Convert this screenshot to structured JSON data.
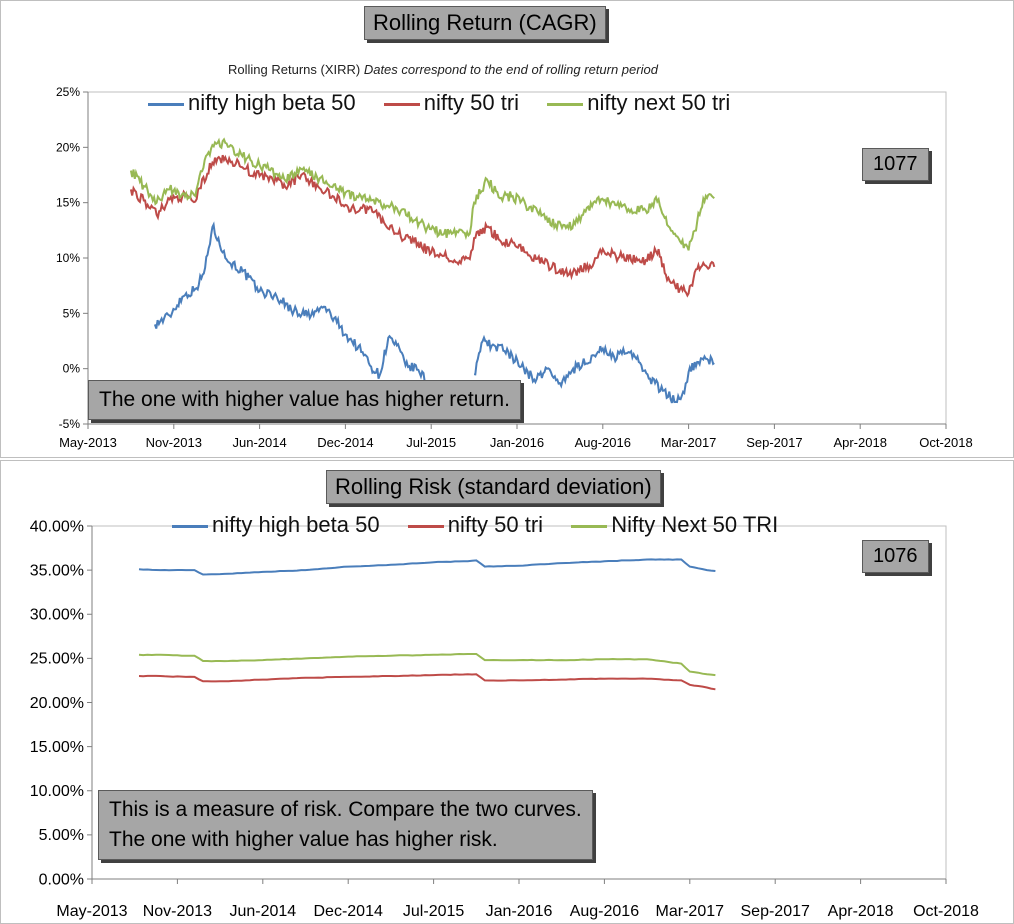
{
  "chart_data": [
    {
      "type": "line",
      "title": "Rolling Return (CAGR)",
      "subtitle": "Rolling Returns (XIRR)",
      "subtitle_note": "Dates correspond to the end of rolling return period",
      "tag": "1077",
      "annotation": "The one with higher value has higher return.",
      "x_tick_labels": [
        "May-2013",
        "Nov-2013",
        "Jun-2014",
        "Dec-2014",
        "Jul-2015",
        "Jan-2016",
        "Aug-2016",
        "Mar-2017",
        "Sep-2017",
        "Apr-2018",
        "Oct-2018"
      ],
      "y_tick_labels": [
        "-5%",
        "0%",
        "5%",
        "10%",
        "15%",
        "20%",
        "25%"
      ],
      "ylim": [
        -5,
        25
      ],
      "legend_position": "top",
      "grid": false,
      "series": [
        {
          "name": "nifty high beta 50",
          "color": "#4a7ebb",
          "points": [
            [
              0.78,
              4.0
            ],
            [
              0.95,
              4.8
            ],
            [
              1.1,
              6.5
            ],
            [
              1.25,
              7.2
            ],
            [
              1.35,
              8.6
            ],
            [
              1.45,
              12.8
            ],
            [
              1.52,
              11.8
            ],
            [
              1.6,
              10.0
            ],
            [
              1.8,
              8.8
            ],
            [
              2.0,
              7.0
            ],
            [
              2.2,
              6.5
            ],
            [
              2.4,
              5.2
            ],
            [
              2.6,
              4.8
            ],
            [
              2.75,
              5.6
            ],
            [
              2.9,
              4.2
            ],
            [
              3.0,
              3.1
            ],
            [
              3.2,
              1.5
            ],
            [
              3.3,
              0.2
            ],
            [
              3.4,
              -0.6
            ],
            [
              3.5,
              2.8
            ],
            [
              3.6,
              2.1
            ],
            [
              3.7,
              0.3
            ],
            [
              3.85,
              -0.1
            ],
            [
              4.0,
              -1.8
            ],
            [
              4.1,
              -2.8
            ]
          ],
          "points2": [
            [
              4.5,
              -0.5
            ],
            [
              4.6,
              2.5
            ],
            [
              4.75,
              2.0
            ],
            [
              4.9,
              1.5
            ],
            [
              5.05,
              0.2
            ],
            [
              5.2,
              -1.0
            ],
            [
              5.35,
              0.0
            ],
            [
              5.5,
              -1.3
            ],
            [
              5.7,
              0.2
            ],
            [
              5.9,
              1.2
            ],
            [
              6.0,
              1.8
            ],
            [
              6.1,
              1.0
            ],
            [
              6.3,
              1.5
            ],
            [
              6.45,
              0.3
            ],
            [
              6.55,
              -0.9
            ],
            [
              6.7,
              -2.0
            ],
            [
              6.85,
              -3.0
            ],
            [
              6.95,
              -2.2
            ],
            [
              7.0,
              -0.3
            ],
            [
              7.1,
              0.6
            ],
            [
              7.2,
              0.9
            ],
            [
              7.3,
              0.5
            ]
          ]
        },
        {
          "name": "nifty 50 tri",
          "color": "#be4b48",
          "points": [
            [
              0.5,
              16.2
            ],
            [
              0.65,
              15.2
            ],
            [
              0.8,
              13.9
            ],
            [
              0.95,
              15.3
            ],
            [
              1.1,
              15.6
            ],
            [
              1.25,
              15.1
            ],
            [
              1.3,
              16.3
            ],
            [
              1.45,
              18.6
            ],
            [
              1.6,
              19.1
            ],
            [
              1.8,
              18.2
            ],
            [
              2.0,
              17.4
            ],
            [
              2.2,
              17.0
            ],
            [
              2.3,
              16.4
            ],
            [
              2.5,
              17.6
            ],
            [
              2.7,
              16.3
            ],
            [
              2.85,
              15.6
            ],
            [
              3.0,
              14.8
            ],
            [
              3.15,
              14.2
            ],
            [
              3.3,
              14.6
            ],
            [
              3.45,
              13.2
            ],
            [
              3.6,
              12.2
            ],
            [
              3.8,
              11.5
            ],
            [
              4.0,
              10.5
            ],
            [
              4.15,
              10.2
            ],
            [
              4.3,
              9.6
            ],
            [
              4.45,
              9.9
            ],
            [
              4.5,
              11.8
            ],
            [
              4.65,
              12.8
            ],
            [
              4.8,
              11.6
            ],
            [
              4.95,
              11.4
            ],
            [
              5.1,
              10.5
            ],
            [
              5.3,
              9.6
            ],
            [
              5.5,
              8.9
            ],
            [
              5.65,
              8.7
            ],
            [
              5.85,
              9.3
            ],
            [
              6.0,
              10.8
            ],
            [
              6.15,
              10.2
            ],
            [
              6.3,
              9.9
            ],
            [
              6.5,
              9.8
            ],
            [
              6.65,
              10.8
            ],
            [
              6.75,
              8.0
            ],
            [
              6.9,
              7.2
            ],
            [
              7.0,
              6.8
            ],
            [
              7.1,
              9.0
            ],
            [
              7.2,
              9.3
            ],
            [
              7.3,
              9.2
            ]
          ]
        },
        {
          "name": "nifty next 50 tri",
          "color": "#98b954",
          "points": [
            [
              0.5,
              17.9
            ],
            [
              0.65,
              16.5
            ],
            [
              0.8,
              15.0
            ],
            [
              0.95,
              16.2
            ],
            [
              1.1,
              15.8
            ],
            [
              1.25,
              15.6
            ],
            [
              1.3,
              17.4
            ],
            [
              1.45,
              20.2
            ],
            [
              1.6,
              20.4
            ],
            [
              1.8,
              19.2
            ],
            [
              2.0,
              18.4
            ],
            [
              2.2,
              17.6
            ],
            [
              2.3,
              17.0
            ],
            [
              2.5,
              18.0
            ],
            [
              2.7,
              17.2
            ],
            [
              2.85,
              16.4
            ],
            [
              3.0,
              15.9
            ],
            [
              3.15,
              15.5
            ],
            [
              3.3,
              15.2
            ],
            [
              3.45,
              14.8
            ],
            [
              3.6,
              14.5
            ],
            [
              3.8,
              13.4
            ],
            [
              4.0,
              12.6
            ],
            [
              4.15,
              12.2
            ],
            [
              4.3,
              12.4
            ],
            [
              4.45,
              12.2
            ],
            [
              4.5,
              15.0
            ],
            [
              4.65,
              17.1
            ],
            [
              4.8,
              15.4
            ],
            [
              4.95,
              15.6
            ],
            [
              5.1,
              14.8
            ],
            [
              5.3,
              13.9
            ],
            [
              5.45,
              13.0
            ],
            [
              5.6,
              12.7
            ],
            [
              5.8,
              14.2
            ],
            [
              5.95,
              15.5
            ],
            [
              6.1,
              15.0
            ],
            [
              6.3,
              14.4
            ],
            [
              6.5,
              14.3
            ],
            [
              6.65,
              15.3
            ],
            [
              6.75,
              13.0
            ],
            [
              6.9,
              11.5
            ],
            [
              7.0,
              10.7
            ],
            [
              7.1,
              13.3
            ],
            [
              7.2,
              15.6
            ],
            [
              7.3,
              15.4
            ]
          ]
        }
      ]
    },
    {
      "type": "line",
      "title": "Rolling Risk (standard deviation)",
      "tag": "1076",
      "annotation_lines": [
        "This is a measure of risk.  Compare the two curves.",
        "The one with higher value has higher risk."
      ],
      "x_tick_labels": [
        "May-2013",
        "Nov-2013",
        "Jun-2014",
        "Dec-2014",
        "Jul-2015",
        "Jan-2016",
        "Aug-2016",
        "Mar-2017",
        "Sep-2017",
        "Apr-2018",
        "Oct-2018"
      ],
      "y_tick_labels": [
        "0.00%",
        "5.00%",
        "10.00%",
        "15.00%",
        "20.00%",
        "25.00%",
        "30.00%",
        "35.00%",
        "40.00%"
      ],
      "ylim": [
        0,
        40
      ],
      "legend_position": "top",
      "grid": false,
      "series": [
        {
          "name": "nifty high beta 50",
          "color": "#4a7ebb",
          "points": [
            [
              0.55,
              35.1
            ],
            [
              0.8,
              35.0
            ],
            [
              1.1,
              35.0
            ],
            [
              1.2,
              35.0
            ],
            [
              1.3,
              34.5
            ],
            [
              1.6,
              34.6
            ],
            [
              2.0,
              34.8
            ],
            [
              2.5,
              35.0
            ],
            [
              3.0,
              35.4
            ],
            [
              3.5,
              35.6
            ],
            [
              4.0,
              35.9
            ],
            [
              4.4,
              36.0
            ],
            [
              4.5,
              36.1
            ],
            [
              4.6,
              35.4
            ],
            [
              5.0,
              35.5
            ],
            [
              5.5,
              35.8
            ],
            [
              6.0,
              36.0
            ],
            [
              6.5,
              36.2
            ],
            [
              6.9,
              36.2
            ],
            [
              7.0,
              35.4
            ],
            [
              7.2,
              35.0
            ],
            [
              7.3,
              34.9
            ]
          ]
        },
        {
          "name": "nifty 50 tri",
          "color": "#be4b48",
          "points": [
            [
              0.55,
              23.0
            ],
            [
              0.8,
              23.0
            ],
            [
              1.1,
              22.9
            ],
            [
              1.2,
              22.9
            ],
            [
              1.3,
              22.4
            ],
            [
              1.6,
              22.4
            ],
            [
              2.0,
              22.6
            ],
            [
              2.5,
              22.8
            ],
            [
              3.0,
              22.9
            ],
            [
              3.5,
              23.0
            ],
            [
              4.0,
              23.1
            ],
            [
              4.4,
              23.2
            ],
            [
              4.5,
              23.2
            ],
            [
              4.6,
              22.5
            ],
            [
              5.0,
              22.5
            ],
            [
              5.5,
              22.6
            ],
            [
              6.0,
              22.7
            ],
            [
              6.5,
              22.7
            ],
            [
              6.9,
              22.5
            ],
            [
              7.0,
              22.0
            ],
            [
              7.2,
              21.7
            ],
            [
              7.3,
              21.5
            ]
          ]
        },
        {
          "name": "Nifty Next 50 TRI",
          "color": "#98b954",
          "points": [
            [
              0.55,
              25.4
            ],
            [
              0.8,
              25.4
            ],
            [
              1.1,
              25.3
            ],
            [
              1.2,
              25.3
            ],
            [
              1.3,
              24.7
            ],
            [
              1.6,
              24.7
            ],
            [
              2.0,
              24.8
            ],
            [
              2.5,
              25.0
            ],
            [
              3.0,
              25.2
            ],
            [
              3.5,
              25.3
            ],
            [
              4.0,
              25.4
            ],
            [
              4.4,
              25.5
            ],
            [
              4.5,
              25.5
            ],
            [
              4.6,
              24.8
            ],
            [
              5.0,
              24.8
            ],
            [
              5.5,
              24.8
            ],
            [
              6.0,
              24.9
            ],
            [
              6.5,
              24.9
            ],
            [
              6.9,
              24.4
            ],
            [
              7.0,
              23.5
            ],
            [
              7.2,
              23.2
            ],
            [
              7.3,
              23.1
            ]
          ]
        }
      ]
    }
  ]
}
